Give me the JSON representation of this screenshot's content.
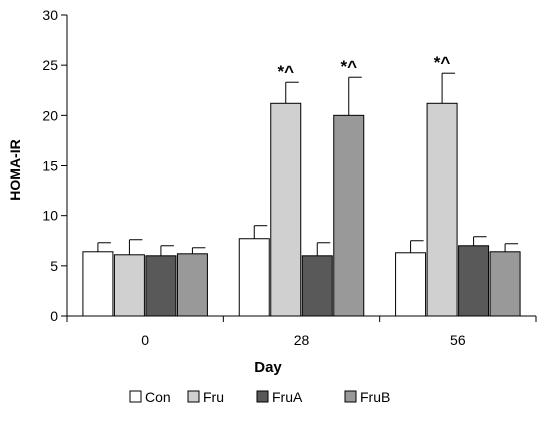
{
  "chart_data": {
    "type": "bar",
    "xlabel": "Day",
    "ylabel": "HOMA-IR",
    "ylim": [
      0,
      30
    ],
    "yticks": [
      0,
      5,
      10,
      15,
      20,
      25,
      30
    ],
    "categories": [
      "0",
      "28",
      "56"
    ],
    "grid": false,
    "legend_position": "bottom",
    "series": [
      {
        "name": "Con",
        "color": "#ffffff",
        "values": [
          6.4,
          7.7,
          6.3
        ],
        "errors": [
          0.9,
          1.3,
          1.2
        ],
        "annotations": [
          "",
          "",
          ""
        ]
      },
      {
        "name": "Fru",
        "color": "#d0d0d0",
        "values": [
          6.1,
          21.2,
          21.2
        ],
        "errors": [
          1.5,
          2.1,
          3.0
        ],
        "annotations": [
          "",
          "*^",
          "*^"
        ]
      },
      {
        "name": "FruA",
        "color": "#595959",
        "values": [
          6.0,
          6.0,
          7.0
        ],
        "errors": [
          1.0,
          1.3,
          0.9
        ],
        "annotations": [
          "",
          "",
          ""
        ]
      },
      {
        "name": "FruB",
        "color": "#999999",
        "values": [
          6.2,
          20.0,
          6.4
        ],
        "errors": [
          0.6,
          3.8,
          0.8
        ],
        "annotations": [
          "",
          "*^",
          ""
        ]
      }
    ]
  }
}
